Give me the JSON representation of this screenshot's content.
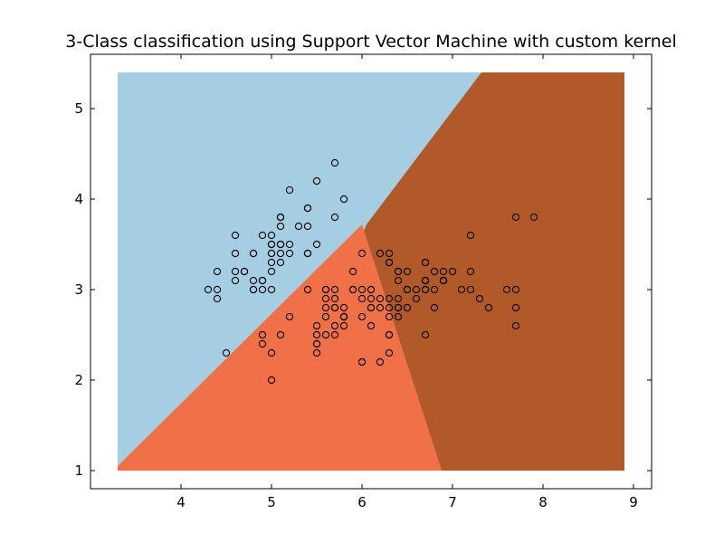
{
  "chart_data": {
    "type": "scatter",
    "title": "3-Class classification using Support Vector Machine with custom kernel",
    "xlabel": "",
    "ylabel": "",
    "xlim": [
      3.0,
      9.2
    ],
    "ylim": [
      0.8,
      5.6
    ],
    "mesh_extent": {
      "x": [
        3.3,
        8.9
      ],
      "y": [
        1.0,
        5.4
      ]
    },
    "x_ticks": [
      4,
      5,
      6,
      7,
      8,
      9
    ],
    "y_ticks": [
      1,
      2,
      3,
      4,
      5
    ],
    "grid": false,
    "regions": [
      {
        "class": 0,
        "color": "#a6cee3"
      },
      {
        "class": 1,
        "color": "#f07048"
      },
      {
        "class": 2,
        "color": "#b15928"
      }
    ],
    "marker": {
      "shape": "circle",
      "fill": "none",
      "edge": "#000000"
    },
    "points": [
      [
        5.1,
        3.5
      ],
      [
        4.9,
        3.0
      ],
      [
        4.7,
        3.2
      ],
      [
        4.6,
        3.1
      ],
      [
        5.0,
        3.6
      ],
      [
        5.4,
        3.9
      ],
      [
        4.6,
        3.4
      ],
      [
        5.0,
        3.4
      ],
      [
        4.4,
        2.9
      ],
      [
        4.9,
        3.1
      ],
      [
        5.4,
        3.7
      ],
      [
        4.8,
        3.4
      ],
      [
        4.8,
        3.0
      ],
      [
        4.3,
        3.0
      ],
      [
        5.8,
        4.0
      ],
      [
        5.7,
        4.4
      ],
      [
        5.4,
        3.9
      ],
      [
        5.1,
        3.5
      ],
      [
        5.7,
        3.8
      ],
      [
        5.1,
        3.8
      ],
      [
        5.4,
        3.4
      ],
      [
        5.1,
        3.7
      ],
      [
        4.6,
        3.6
      ],
      [
        5.1,
        3.3
      ],
      [
        4.8,
        3.4
      ],
      [
        5.0,
        3.0
      ],
      [
        5.0,
        3.4
      ],
      [
        5.2,
        3.5
      ],
      [
        5.2,
        3.4
      ],
      [
        4.7,
        3.2
      ],
      [
        4.8,
        3.1
      ],
      [
        5.4,
        3.4
      ],
      [
        5.2,
        4.1
      ],
      [
        5.5,
        4.2
      ],
      [
        4.9,
        3.1
      ],
      [
        5.0,
        3.2
      ],
      [
        5.5,
        3.5
      ],
      [
        4.9,
        3.6
      ],
      [
        4.4,
        3.0
      ],
      [
        5.1,
        3.4
      ],
      [
        5.0,
        3.5
      ],
      [
        4.5,
        2.3
      ],
      [
        4.4,
        3.2
      ],
      [
        5.0,
        3.5
      ],
      [
        5.1,
        3.8
      ],
      [
        4.8,
        3.0
      ],
      [
        5.1,
        3.8
      ],
      [
        4.6,
        3.2
      ],
      [
        5.3,
        3.7
      ],
      [
        5.0,
        3.3
      ],
      [
        7.0,
        3.2
      ],
      [
        6.4,
        3.2
      ],
      [
        6.9,
        3.1
      ],
      [
        5.5,
        2.3
      ],
      [
        6.5,
        2.8
      ],
      [
        5.7,
        2.8
      ],
      [
        6.3,
        3.3
      ],
      [
        4.9,
        2.4
      ],
      [
        6.6,
        2.9
      ],
      [
        5.2,
        2.7
      ],
      [
        5.0,
        2.0
      ],
      [
        5.9,
        3.0
      ],
      [
        6.0,
        2.2
      ],
      [
        6.1,
        2.9
      ],
      [
        5.6,
        2.9
      ],
      [
        6.7,
        3.1
      ],
      [
        5.6,
        3.0
      ],
      [
        5.8,
        2.7
      ],
      [
        6.2,
        2.2
      ],
      [
        5.6,
        2.5
      ],
      [
        5.9,
        3.2
      ],
      [
        6.1,
        2.8
      ],
      [
        6.3,
        2.5
      ],
      [
        6.1,
        2.8
      ],
      [
        6.4,
        2.9
      ],
      [
        6.6,
        3.0
      ],
      [
        6.8,
        2.8
      ],
      [
        6.7,
        3.0
      ],
      [
        6.0,
        2.9
      ],
      [
        5.7,
        2.6
      ],
      [
        5.5,
        2.4
      ],
      [
        5.5,
        2.4
      ],
      [
        5.8,
        2.7
      ],
      [
        6.0,
        2.7
      ],
      [
        5.4,
        3.0
      ],
      [
        6.0,
        3.4
      ],
      [
        6.7,
        3.1
      ],
      [
        6.3,
        2.3
      ],
      [
        5.6,
        3.0
      ],
      [
        5.5,
        2.5
      ],
      [
        5.5,
        2.6
      ],
      [
        6.1,
        3.0
      ],
      [
        5.8,
        2.6
      ],
      [
        5.0,
        2.3
      ],
      [
        5.6,
        2.7
      ],
      [
        5.7,
        3.0
      ],
      [
        5.7,
        2.9
      ],
      [
        6.2,
        2.9
      ],
      [
        5.1,
        2.5
      ],
      [
        5.7,
        2.8
      ],
      [
        6.3,
        3.3
      ],
      [
        5.8,
        2.7
      ],
      [
        7.1,
        3.0
      ],
      [
        6.3,
        2.9
      ],
      [
        6.5,
        3.0
      ],
      [
        7.6,
        3.0
      ],
      [
        4.9,
        2.5
      ],
      [
        7.3,
        2.9
      ],
      [
        6.7,
        2.5
      ],
      [
        7.2,
        3.6
      ],
      [
        6.5,
        3.2
      ],
      [
        6.4,
        2.7
      ],
      [
        6.8,
        3.0
      ],
      [
        5.7,
        2.5
      ],
      [
        5.8,
        2.8
      ],
      [
        6.4,
        3.2
      ],
      [
        6.5,
        3.0
      ],
      [
        7.7,
        3.8
      ],
      [
        7.7,
        2.6
      ],
      [
        6.0,
        2.2
      ],
      [
        6.9,
        3.2
      ],
      [
        5.6,
        2.8
      ],
      [
        7.7,
        2.8
      ],
      [
        6.3,
        2.7
      ],
      [
        6.7,
        3.3
      ],
      [
        7.2,
        3.2
      ],
      [
        6.2,
        2.8
      ],
      [
        6.1,
        3.0
      ],
      [
        6.4,
        2.8
      ],
      [
        7.2,
        3.0
      ],
      [
        7.4,
        2.8
      ],
      [
        7.9,
        3.8
      ],
      [
        6.4,
        2.8
      ],
      [
        6.3,
        2.8
      ],
      [
        6.1,
        2.6
      ],
      [
        7.7,
        3.0
      ],
      [
        6.3,
        3.4
      ],
      [
        6.4,
        3.1
      ],
      [
        6.0,
        3.0
      ],
      [
        6.9,
        3.1
      ],
      [
        6.7,
        3.1
      ],
      [
        6.9,
        3.1
      ],
      [
        5.8,
        2.7
      ],
      [
        6.8,
        3.2
      ],
      [
        6.7,
        3.3
      ],
      [
        6.7,
        3.0
      ],
      [
        6.3,
        2.5
      ],
      [
        6.5,
        3.0
      ],
      [
        6.2,
        3.4
      ],
      [
        5.9,
        3.0
      ]
    ]
  }
}
